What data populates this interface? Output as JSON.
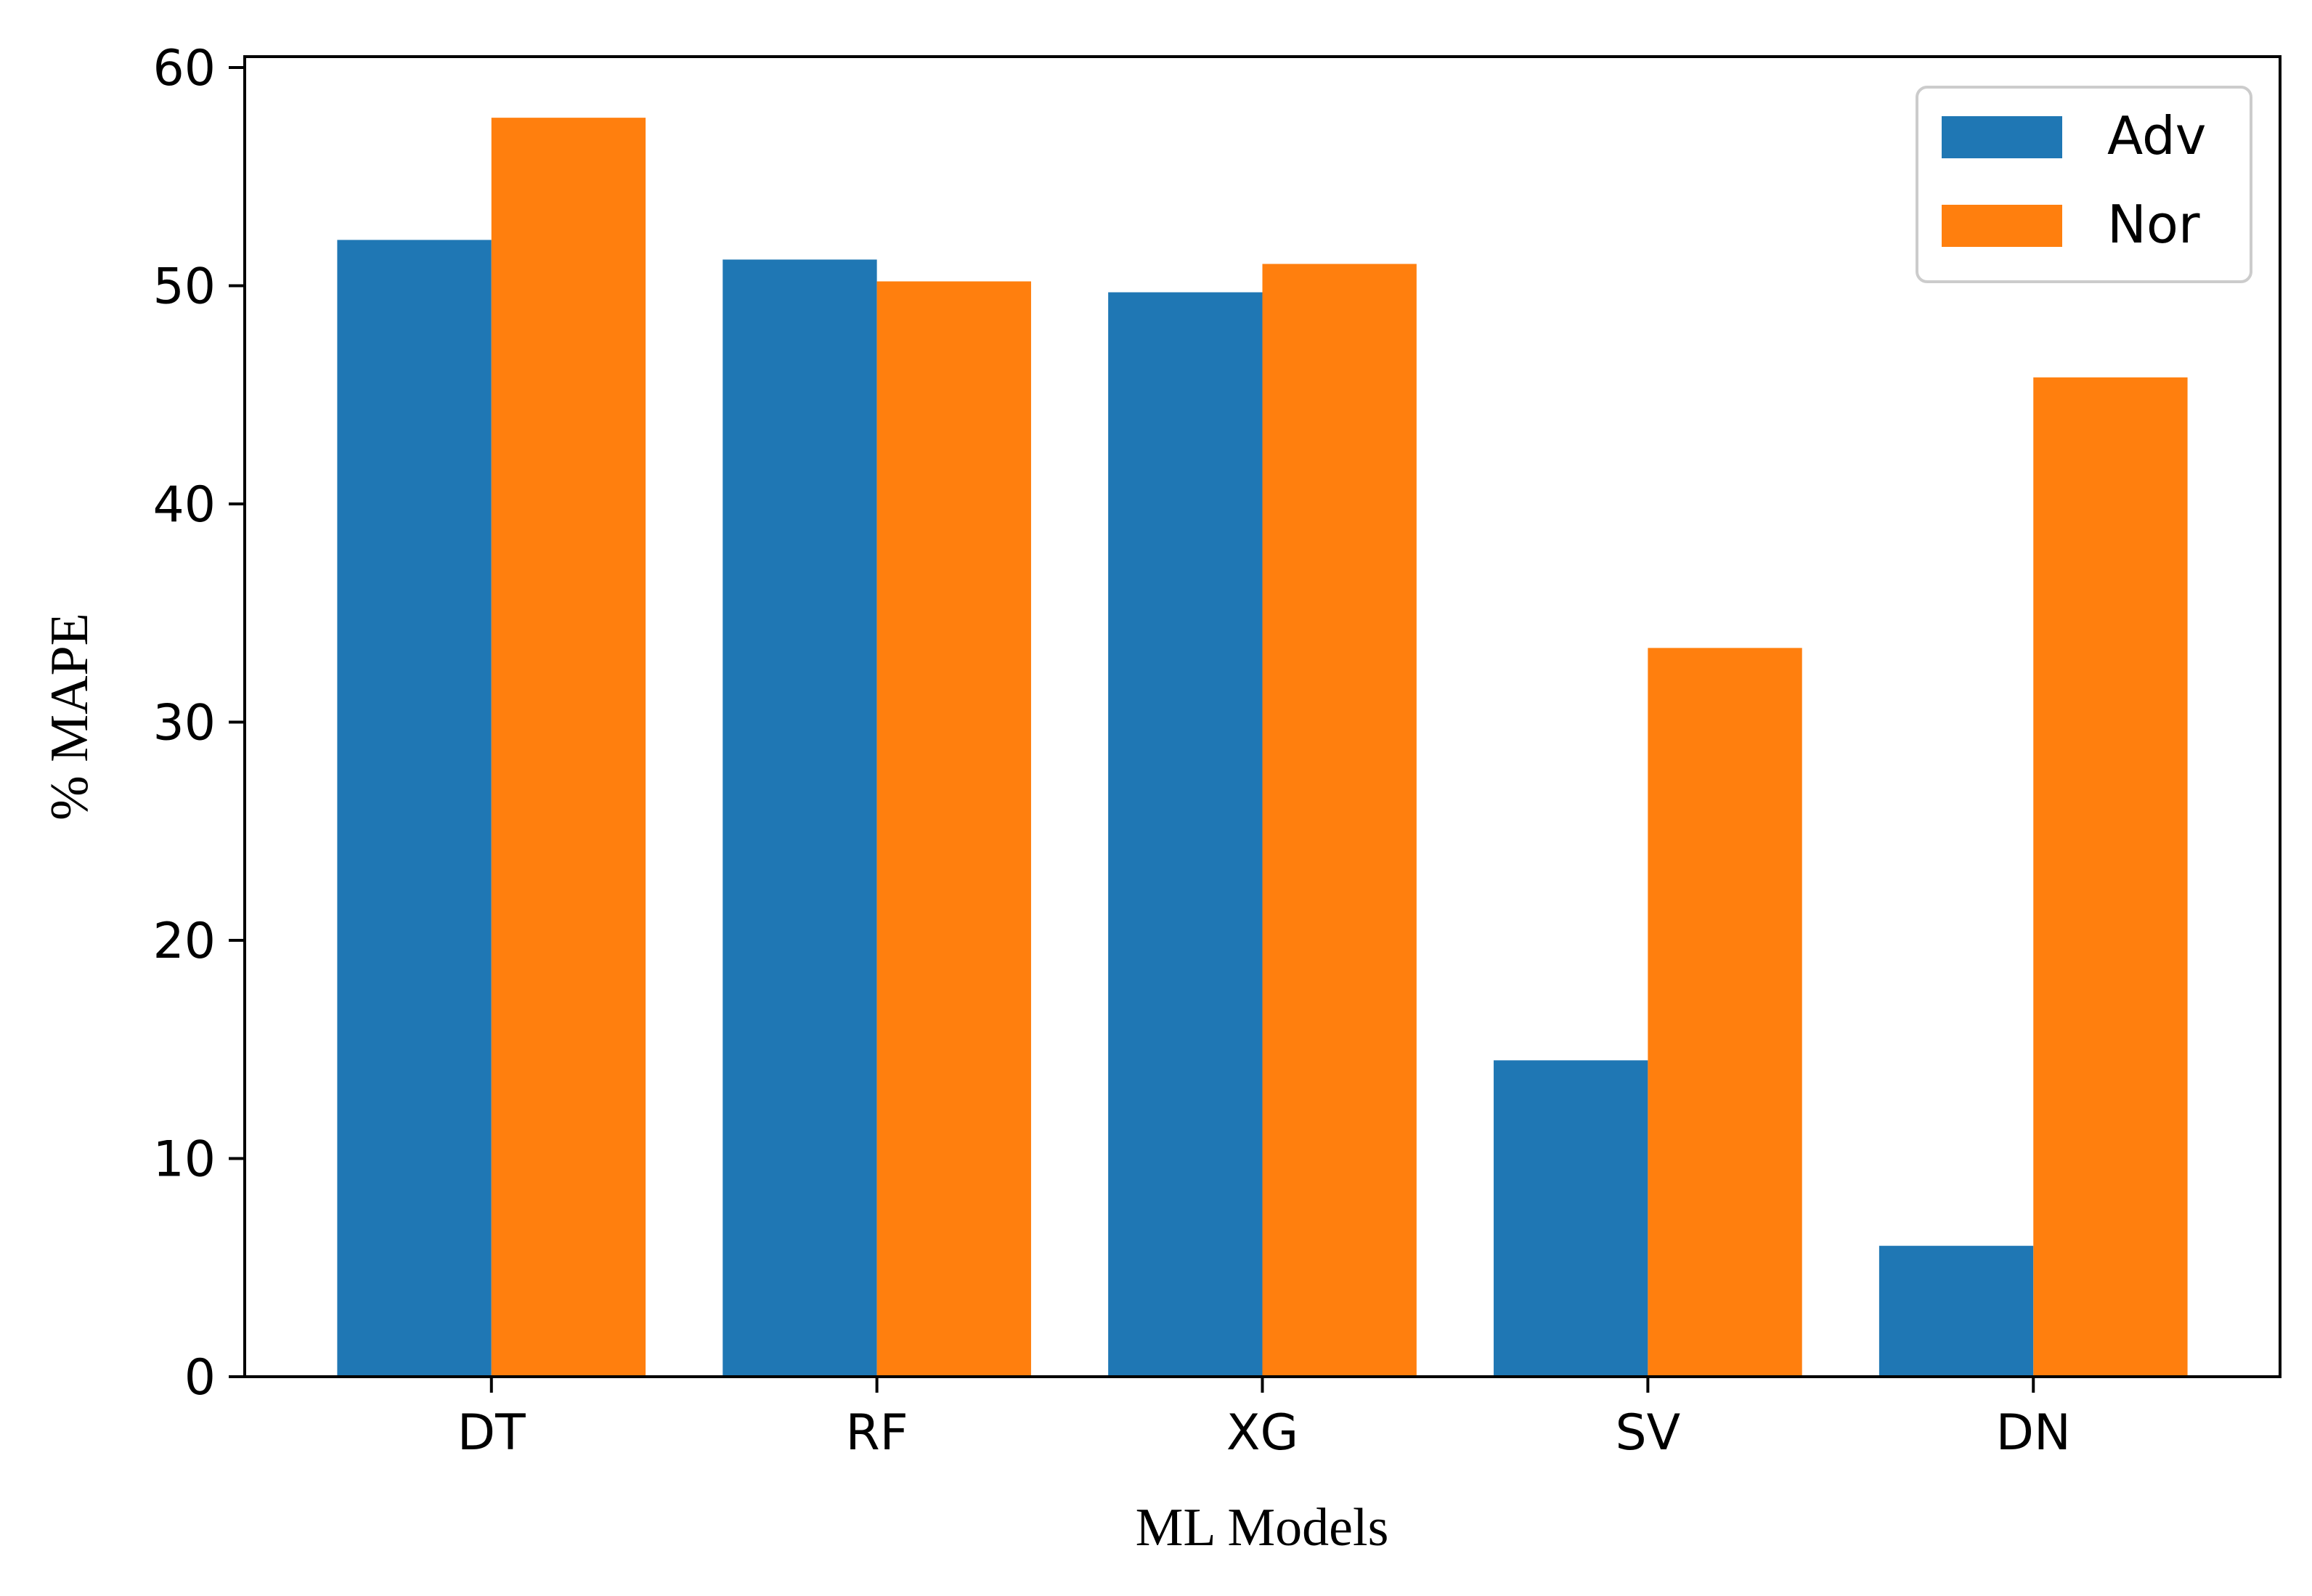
{
  "chart_data": {
    "type": "bar",
    "title": "",
    "xlabel": "ML Models",
    "ylabel": "% MAPE",
    "categories": [
      "DT",
      "RF",
      "XG",
      "SV",
      "DN"
    ],
    "series": [
      {
        "name": "Adv",
        "color": "#1f77b4",
        "values": [
          52.1,
          51.2,
          49.7,
          14.5,
          6.0
        ]
      },
      {
        "name": "Nor",
        "color": "#ff7f0e",
        "values": [
          57.7,
          50.2,
          51.0,
          33.4,
          45.8
        ]
      }
    ],
    "ylim": [
      0,
      60.5
    ],
    "yticks": [
      0,
      10,
      20,
      30,
      40,
      50,
      60
    ],
    "grid": false,
    "legend_position": "top-right"
  }
}
